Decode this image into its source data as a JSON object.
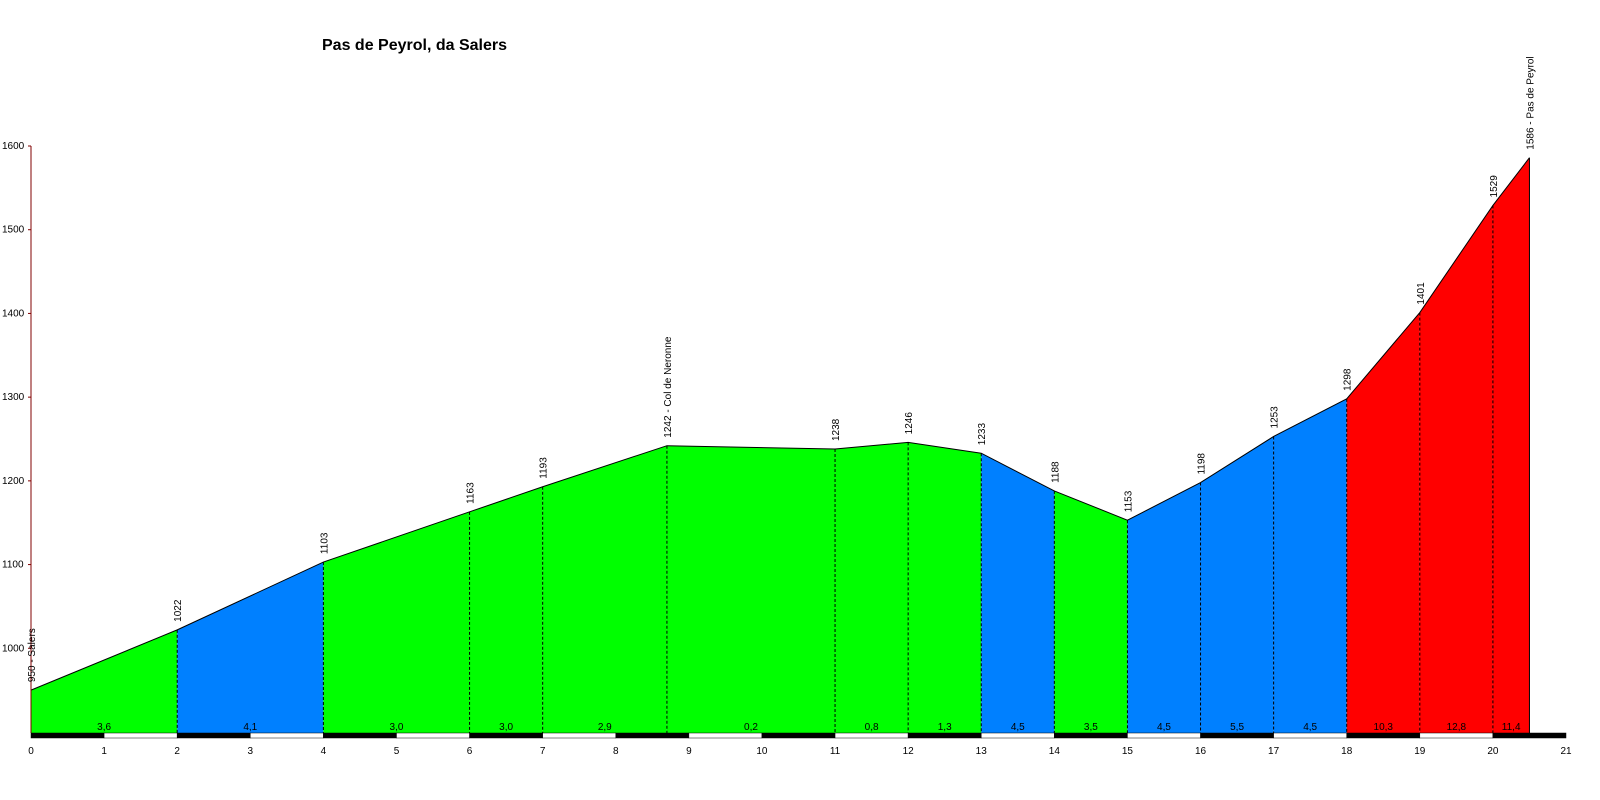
{
  "chart_data": {
    "type": "area",
    "title": "Pas de Peyrol, da Salers",
    "xlabel": "",
    "ylabel": "",
    "xlim": [
      0,
      21
    ],
    "ylim": [
      900,
      1600
    ],
    "x_ticks": [
      "0",
      "1",
      "2",
      "3",
      "4",
      "5",
      "6",
      "7",
      "8",
      "9",
      "10",
      "11",
      "12",
      "13",
      "14",
      "15",
      "16",
      "17",
      "18",
      "19",
      "20",
      "21"
    ],
    "y_ticks": [
      "1000",
      "1100",
      "1200",
      "1300",
      "1400",
      "1500",
      "1600"
    ],
    "points": [
      {
        "x": 0,
        "y": 950,
        "label": "950 - Salers"
      },
      {
        "x": 2,
        "y": 1022,
        "label": "1022"
      },
      {
        "x": 4,
        "y": 1103,
        "label": "1103"
      },
      {
        "x": 6,
        "y": 1163,
        "label": "1163"
      },
      {
        "x": 7,
        "y": 1193,
        "label": "1193"
      },
      {
        "x": 8.7,
        "y": 1242,
        "label": "1242 - Col de Neronne"
      },
      {
        "x": 11,
        "y": 1238,
        "label": "1238"
      },
      {
        "x": 12,
        "y": 1246,
        "label": "1246"
      },
      {
        "x": 13,
        "y": 1233,
        "label": "1233"
      },
      {
        "x": 14,
        "y": 1188,
        "label": "1188"
      },
      {
        "x": 15,
        "y": 1153,
        "label": "1153"
      },
      {
        "x": 16,
        "y": 1198,
        "label": "1198"
      },
      {
        "x": 17,
        "y": 1253,
        "label": "1253"
      },
      {
        "x": 18,
        "y": 1298,
        "label": "1298"
      },
      {
        "x": 19,
        "y": 1401,
        "label": "1401"
      },
      {
        "x": 20,
        "y": 1529,
        "label": "1529"
      },
      {
        "x": 20.5,
        "y": 1586,
        "label": "1586 - Pas de Peyrol"
      }
    ],
    "segments": [
      {
        "from": 0,
        "to": 2,
        "grade": "3,6",
        "color": "#00ff00"
      },
      {
        "from": 2,
        "to": 4,
        "grade": "4,1",
        "color": "#0080ff"
      },
      {
        "from": 4,
        "to": 6,
        "grade": "3,0",
        "color": "#00ff00"
      },
      {
        "from": 6,
        "to": 7,
        "grade": "3,0",
        "color": "#00ff00"
      },
      {
        "from": 7,
        "to": 8.7,
        "grade": "2,9",
        "color": "#00ff00"
      },
      {
        "from": 8.7,
        "to": 11,
        "grade": "0,2",
        "color": "#00ff00"
      },
      {
        "from": 11,
        "to": 12,
        "grade": "0,8",
        "color": "#00ff00"
      },
      {
        "from": 12,
        "to": 13,
        "grade": "1,3",
        "color": "#00ff00"
      },
      {
        "from": 13,
        "to": 14,
        "grade": "4,5",
        "color": "#0080ff"
      },
      {
        "from": 14,
        "to": 15,
        "grade": "3,5",
        "color": "#00ff00"
      },
      {
        "from": 15,
        "to": 16,
        "grade": "4,5",
        "color": "#0080ff"
      },
      {
        "from": 16,
        "to": 17,
        "grade": "5,5",
        "color": "#0080ff"
      },
      {
        "from": 17,
        "to": 18,
        "grade": "4,5",
        "color": "#0080ff"
      },
      {
        "from": 18,
        "to": 19,
        "grade": "10,3",
        "color": "#ff0000"
      },
      {
        "from": 19,
        "to": 20,
        "grade": "12,8",
        "color": "#ff0000"
      },
      {
        "from": 20,
        "to": 20.5,
        "grade": "11,4",
        "color": "#ff0000"
      }
    ],
    "grid": false,
    "colors": {
      "easy": "#00ff00",
      "medium": "#0080ff",
      "hard": "#ff0000",
      "axis": "#800000"
    }
  }
}
